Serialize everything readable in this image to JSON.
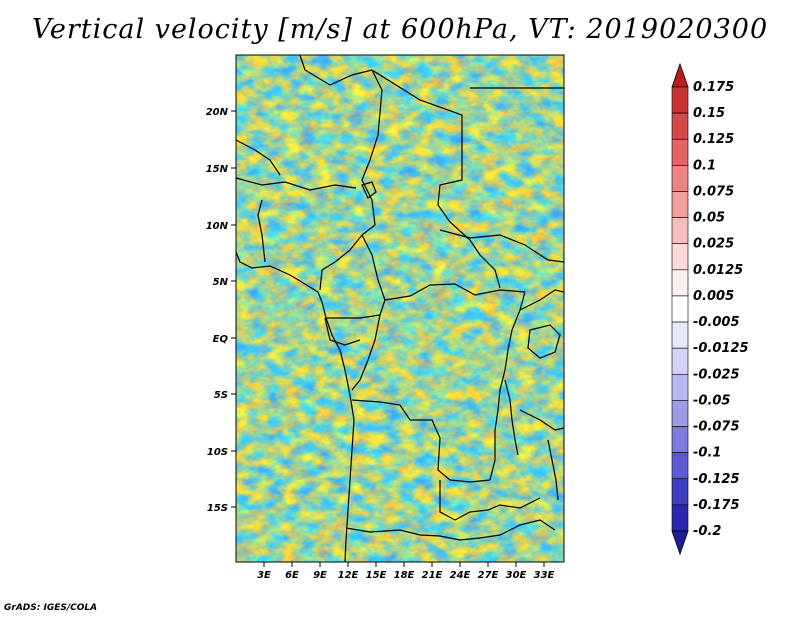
{
  "title": "Vertical velocity [m/s] at 600hPa, VT: 2019020300",
  "credit": "GrADS: IGES/COLA",
  "lat_labels": [
    "20N",
    "15N",
    "10N",
    "5N",
    "EQ",
    "5S",
    "10S",
    "15S"
  ],
  "lon_labels": [
    "3E",
    "6E",
    "9E",
    "12E",
    "15E",
    "18E",
    "21E",
    "24E",
    "27E",
    "30E",
    "33E"
  ],
  "colorbar": {
    "labels": [
      "0.175",
      "0.15",
      "0.125",
      "0.1",
      "0.075",
      "0.05",
      "0.025",
      "0.0125",
      "0.005",
      "-0.005",
      "-0.0125",
      "-0.025",
      "-0.05",
      "-0.075",
      "-0.1",
      "-0.125",
      "-0.175",
      "-0.2"
    ],
    "colors": [
      "#b41e1e",
      "#c83232",
      "#d74a4a",
      "#e46464",
      "#ec8484",
      "#f2a0a0",
      "#f7bebe",
      "#fbd9d9",
      "#fdeeee",
      "#ffffff",
      "#e8e8fb",
      "#d2d2f6",
      "#b8b8f0",
      "#9b9be8",
      "#7c7cde",
      "#5c5cd0",
      "#3e3ec0",
      "#2a2ab0",
      "#1e1e9c"
    ]
  }
}
